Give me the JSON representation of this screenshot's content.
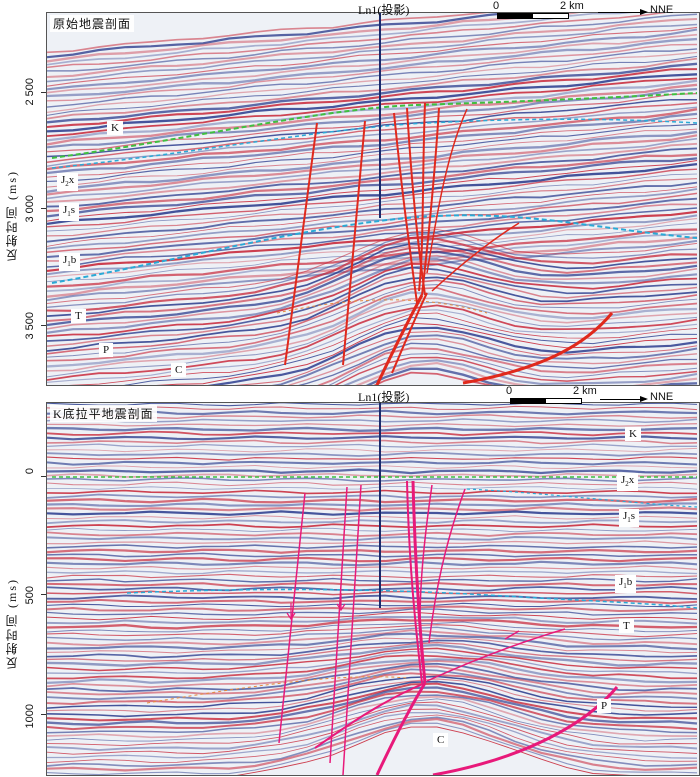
{
  "top": {
    "title": "原始地震剖面",
    "well": "Ln1(投影)",
    "ylabel": "反射时间 (ms)",
    "yticks": [
      "2 500",
      "3 000",
      "3 500"
    ],
    "scale": {
      "zero": "0",
      "distance": "2 km",
      "direction": "NNE"
    },
    "formations": [
      "K",
      "J₂x",
      "J₁s",
      "J₁b",
      "T",
      "P",
      "C"
    ]
  },
  "bottom": {
    "title": "K底拉平地震剖面",
    "well": "Ln1(投影)",
    "ylabel": "反射时间 (ms)",
    "yticks": [
      "0",
      "500",
      "1000"
    ],
    "scale": {
      "zero": "0",
      "distance": "2 km",
      "direction": "NNE"
    },
    "formations": [
      "K",
      "J₂x",
      "J₁s",
      "J₁b",
      "T",
      "P",
      "C"
    ]
  },
  "colors": {
    "positive_reflection": "#c8283a",
    "negative_reflection": "#2e3f8f",
    "fault_top": "#e0291c",
    "fault_bottom": "#e8197a",
    "well": "#1b2a6b",
    "horizon_green": "#3fbf3f",
    "horizon_cyan": "#2aa9d6"
  }
}
